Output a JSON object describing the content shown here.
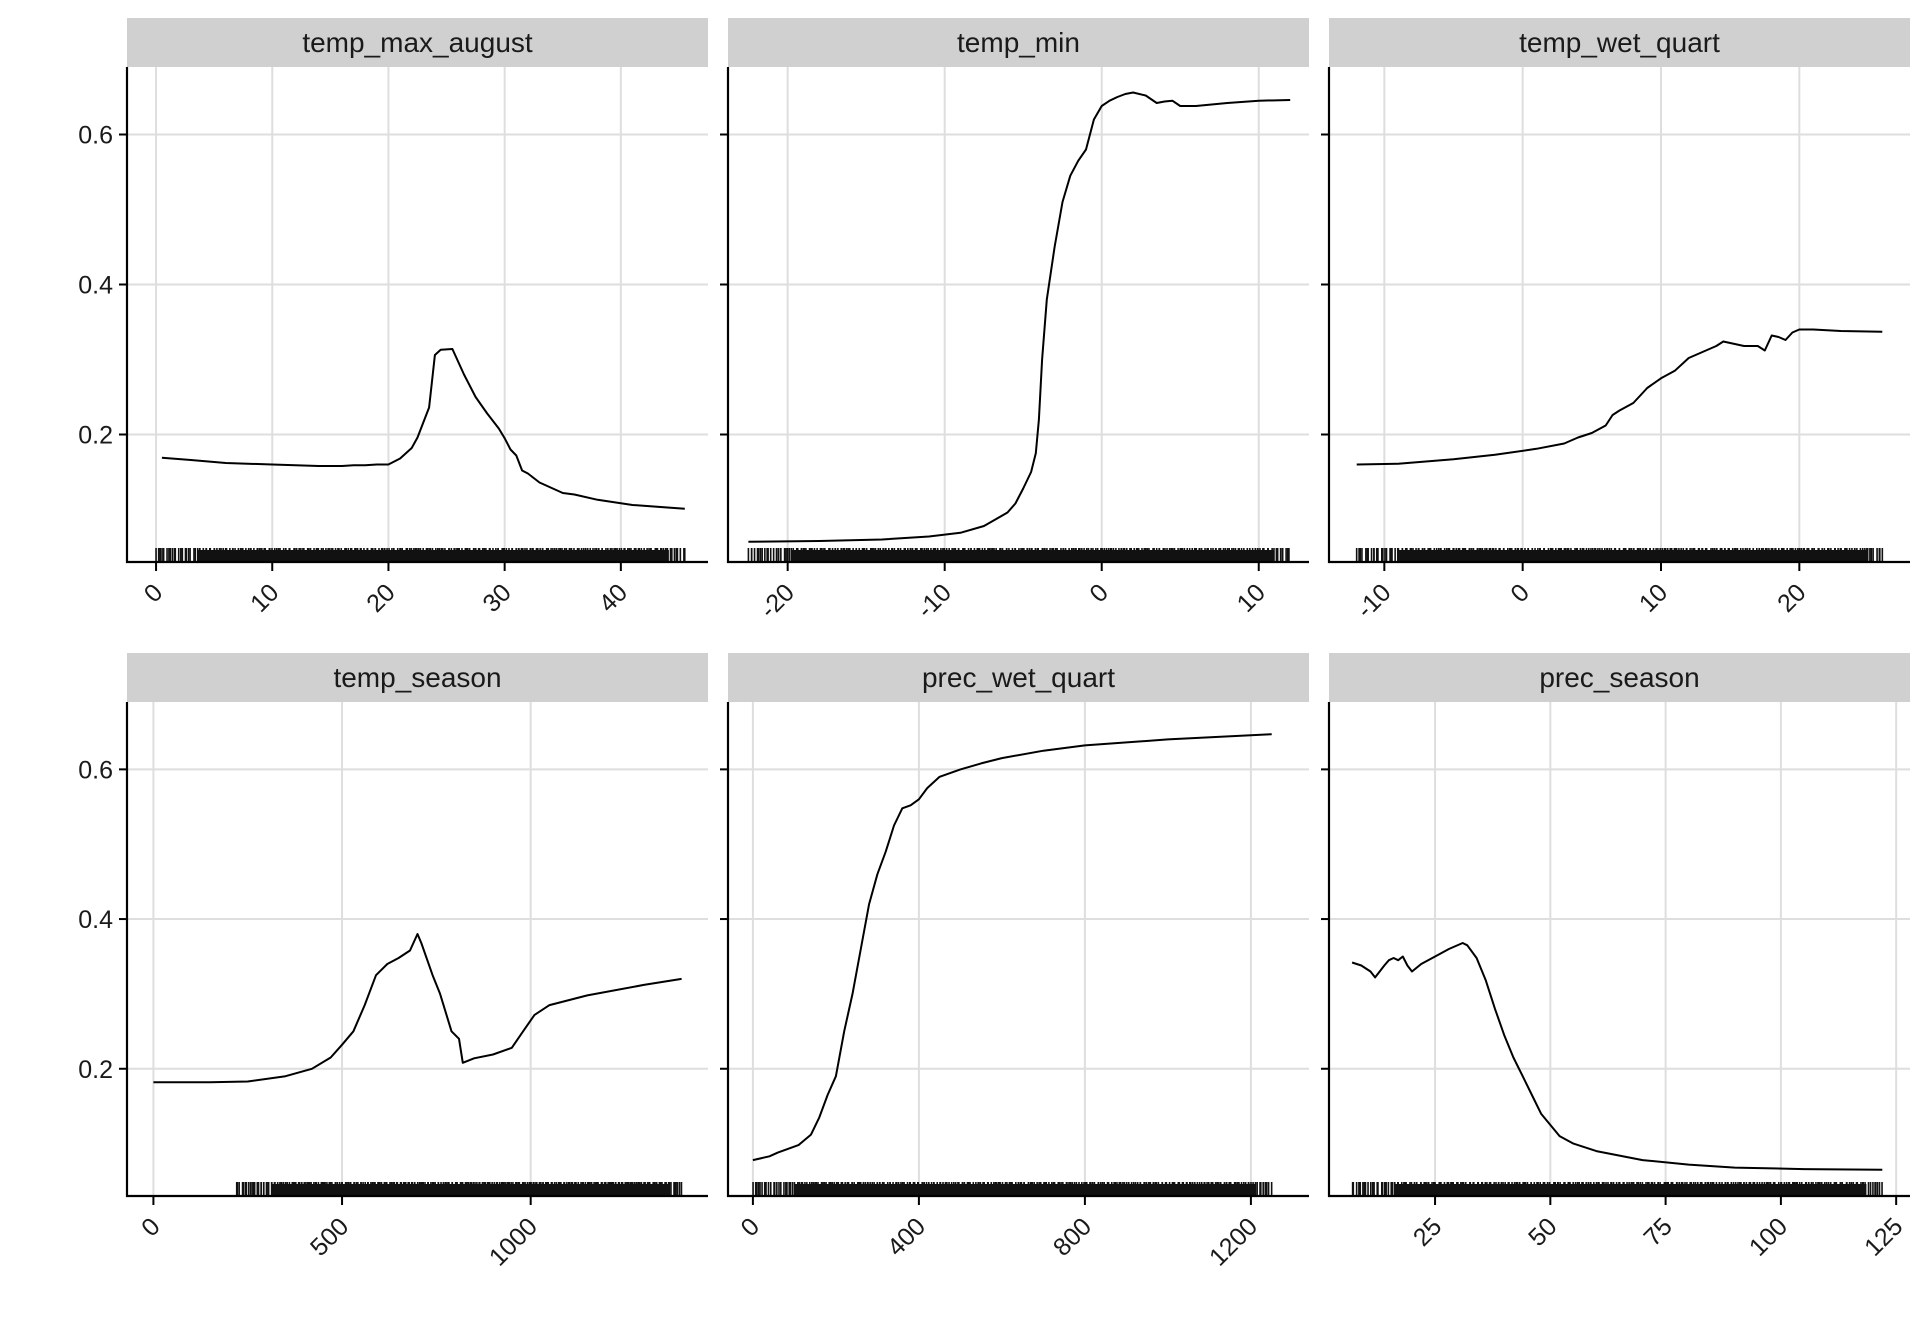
{
  "chart_data": [
    {
      "type": "line",
      "title": "temp_max_august",
      "xlim": [
        -2.5,
        47.5
      ],
      "ylim": [
        0.03,
        0.69
      ],
      "x_ticks": [
        0,
        10,
        20,
        30,
        40
      ],
      "y_ticks": [
        0.2,
        0.4,
        0.6
      ],
      "rug_range": [
        0,
        45.5
      ],
      "points": [
        [
          0.5,
          0.169
        ],
        [
          3,
          0.166
        ],
        [
          6,
          0.162
        ],
        [
          10,
          0.16
        ],
        [
          14,
          0.158
        ],
        [
          16,
          0.158
        ],
        [
          17,
          0.159
        ],
        [
          18,
          0.159
        ],
        [
          19,
          0.16
        ],
        [
          20,
          0.16
        ],
        [
          21,
          0.168
        ],
        [
          22,
          0.182
        ],
        [
          22.5,
          0.196
        ],
        [
          23.5,
          0.236
        ],
        [
          24,
          0.306
        ],
        [
          24.5,
          0.313
        ],
        [
          25.5,
          0.314
        ],
        [
          26.5,
          0.28
        ],
        [
          27.5,
          0.25
        ],
        [
          28.5,
          0.228
        ],
        [
          29.5,
          0.208
        ],
        [
          30,
          0.195
        ],
        [
          30.5,
          0.18
        ],
        [
          31,
          0.172
        ],
        [
          31.5,
          0.152
        ],
        [
          32,
          0.148
        ],
        [
          33,
          0.136
        ],
        [
          35,
          0.122
        ],
        [
          36,
          0.12
        ],
        [
          38,
          0.113
        ],
        [
          41,
          0.106
        ],
        [
          45.5,
          0.101
        ]
      ]
    },
    {
      "type": "line",
      "title": "temp_min",
      "xlim": [
        -23.8,
        13.2
      ],
      "ylim": [
        0.03,
        0.69
      ],
      "x_ticks": [
        -20,
        -10,
        0,
        10
      ],
      "y_ticks": [
        0.2,
        0.4,
        0.6
      ],
      "rug_range": [
        -22.5,
        12
      ],
      "points": [
        [
          -22.5,
          0.057
        ],
        [
          -18,
          0.058
        ],
        [
          -14,
          0.06
        ],
        [
          -11,
          0.064
        ],
        [
          -9,
          0.069
        ],
        [
          -7.5,
          0.078
        ],
        [
          -6.5,
          0.09
        ],
        [
          -6,
          0.096
        ],
        [
          -5.5,
          0.108
        ],
        [
          -5,
          0.128
        ],
        [
          -4.5,
          0.15
        ],
        [
          -4.2,
          0.175
        ],
        [
          -4,
          0.22
        ],
        [
          -3.8,
          0.3
        ],
        [
          -3.5,
          0.38
        ],
        [
          -3,
          0.45
        ],
        [
          -2.5,
          0.51
        ],
        [
          -2,
          0.545
        ],
        [
          -1.5,
          0.565
        ],
        [
          -1,
          0.58
        ],
        [
          -0.5,
          0.62
        ],
        [
          0,
          0.638
        ],
        [
          0.5,
          0.645
        ],
        [
          1,
          0.65
        ],
        [
          1.5,
          0.654
        ],
        [
          2,
          0.656
        ],
        [
          2.8,
          0.652
        ],
        [
          3.5,
          0.642
        ],
        [
          4,
          0.644
        ],
        [
          4.5,
          0.645
        ],
        [
          5,
          0.638
        ],
        [
          6,
          0.638
        ],
        [
          7,
          0.64
        ],
        [
          8,
          0.642
        ],
        [
          10,
          0.645
        ],
        [
          12,
          0.646
        ]
      ]
    },
    {
      "type": "line",
      "title": "temp_wet_quart",
      "xlim": [
        -14,
        28
      ],
      "ylim": [
        0.03,
        0.69
      ],
      "x_ticks": [
        -10,
        0,
        10,
        20
      ],
      "y_ticks": [
        0.2,
        0.4,
        0.6
      ],
      "rug_range": [
        -12,
        26
      ],
      "points": [
        [
          -12,
          0.16
        ],
        [
          -9,
          0.161
        ],
        [
          -5,
          0.167
        ],
        [
          -2,
          0.173
        ],
        [
          1,
          0.181
        ],
        [
          3,
          0.188
        ],
        [
          4,
          0.196
        ],
        [
          5,
          0.202
        ],
        [
          6,
          0.212
        ],
        [
          6.5,
          0.226
        ],
        [
          7,
          0.232
        ],
        [
          8,
          0.242
        ],
        [
          8.5,
          0.252
        ],
        [
          9,
          0.262
        ],
        [
          10,
          0.275
        ],
        [
          11,
          0.285
        ],
        [
          12,
          0.302
        ],
        [
          13,
          0.31
        ],
        [
          14,
          0.318
        ],
        [
          14.5,
          0.324
        ],
        [
          15,
          0.322
        ],
        [
          16,
          0.318
        ],
        [
          17,
          0.318
        ],
        [
          17.5,
          0.312
        ],
        [
          18,
          0.332
        ],
        [
          18.5,
          0.33
        ],
        [
          19,
          0.326
        ],
        [
          19.5,
          0.336
        ],
        [
          20,
          0.34
        ],
        [
          21,
          0.34
        ],
        [
          23,
          0.338
        ],
        [
          26,
          0.337
        ]
      ]
    },
    {
      "type": "line",
      "title": "temp_season",
      "xlim": [
        -70,
        1470
      ],
      "ylim": [
        0.03,
        0.69
      ],
      "x_ticks": [
        0,
        500,
        1000
      ],
      "y_ticks": [
        0.2,
        0.4,
        0.6
      ],
      "rug_range": [
        220,
        1400
      ],
      "points": [
        [
          0,
          0.182
        ],
        [
          150,
          0.182
        ],
        [
          250,
          0.183
        ],
        [
          350,
          0.19
        ],
        [
          420,
          0.2
        ],
        [
          470,
          0.215
        ],
        [
          500,
          0.232
        ],
        [
          530,
          0.25
        ],
        [
          560,
          0.285
        ],
        [
          590,
          0.325
        ],
        [
          620,
          0.34
        ],
        [
          650,
          0.348
        ],
        [
          680,
          0.358
        ],
        [
          700,
          0.38
        ],
        [
          710,
          0.368
        ],
        [
          740,
          0.325
        ],
        [
          760,
          0.3
        ],
        [
          790,
          0.25
        ],
        [
          810,
          0.24
        ],
        [
          820,
          0.208
        ],
        [
          850,
          0.214
        ],
        [
          900,
          0.219
        ],
        [
          950,
          0.228
        ],
        [
          980,
          0.25
        ],
        [
          1010,
          0.272
        ],
        [
          1050,
          0.285
        ],
        [
          1150,
          0.298
        ],
        [
          1300,
          0.312
        ],
        [
          1400,
          0.32
        ]
      ]
    },
    {
      "type": "line",
      "title": "prec_wet_quart",
      "xlim": [
        -60,
        1340
      ],
      "ylim": [
        0.03,
        0.69
      ],
      "x_ticks": [
        0,
        400,
        800,
        1200
      ],
      "y_ticks": [
        0.2,
        0.4,
        0.6
      ],
      "rug_range": [
        0,
        1250
      ],
      "points": [
        [
          0,
          0.078
        ],
        [
          40,
          0.083
        ],
        [
          60,
          0.088
        ],
        [
          80,
          0.092
        ],
        [
          110,
          0.098
        ],
        [
          140,
          0.112
        ],
        [
          160,
          0.135
        ],
        [
          180,
          0.165
        ],
        [
          200,
          0.19
        ],
        [
          220,
          0.25
        ],
        [
          240,
          0.3
        ],
        [
          260,
          0.36
        ],
        [
          280,
          0.42
        ],
        [
          300,
          0.46
        ],
        [
          320,
          0.49
        ],
        [
          340,
          0.525
        ],
        [
          360,
          0.548
        ],
        [
          380,
          0.552
        ],
        [
          400,
          0.56
        ],
        [
          420,
          0.575
        ],
        [
          450,
          0.59
        ],
        [
          500,
          0.6
        ],
        [
          550,
          0.608
        ],
        [
          600,
          0.615
        ],
        [
          700,
          0.625
        ],
        [
          800,
          0.632
        ],
        [
          1000,
          0.64
        ],
        [
          1250,
          0.647
        ]
      ]
    },
    {
      "type": "line",
      "title": "prec_season",
      "xlim": [
        2,
        128
      ],
      "ylim": [
        0.03,
        0.69
      ],
      "x_ticks": [
        25,
        50,
        75,
        100,
        125
      ],
      "y_ticks": [
        0.2,
        0.4,
        0.6
      ],
      "rug_range": [
        7,
        122
      ],
      "points": [
        [
          7,
          0.342
        ],
        [
          9,
          0.338
        ],
        [
          11,
          0.33
        ],
        [
          12,
          0.322
        ],
        [
          13,
          0.33
        ],
        [
          14,
          0.338
        ],
        [
          15,
          0.345
        ],
        [
          16,
          0.348
        ],
        [
          17,
          0.345
        ],
        [
          18,
          0.35
        ],
        [
          19,
          0.338
        ],
        [
          20,
          0.33
        ],
        [
          22,
          0.34
        ],
        [
          25,
          0.35
        ],
        [
          28,
          0.36
        ],
        [
          31,
          0.368
        ],
        [
          32,
          0.365
        ],
        [
          34,
          0.348
        ],
        [
          36,
          0.318
        ],
        [
          38,
          0.28
        ],
        [
          40,
          0.245
        ],
        [
          42,
          0.215
        ],
        [
          44,
          0.19
        ],
        [
          46,
          0.165
        ],
        [
          48,
          0.14
        ],
        [
          50,
          0.125
        ],
        [
          52,
          0.11
        ],
        [
          55,
          0.1
        ],
        [
          60,
          0.09
        ],
        [
          70,
          0.078
        ],
        [
          80,
          0.072
        ],
        [
          90,
          0.068
        ],
        [
          105,
          0.066
        ],
        [
          122,
          0.065
        ]
      ]
    }
  ]
}
